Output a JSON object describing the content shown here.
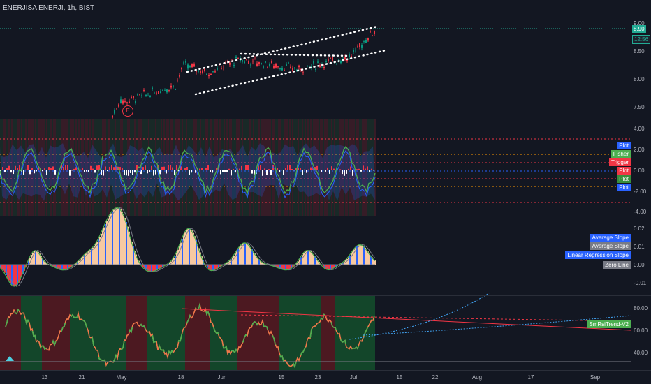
{
  "window": {
    "title": "ENERJISA ENERJI, 1h, BIST"
  },
  "colors": {
    "bg": "#131722",
    "green": "#089981",
    "red": "#f23645",
    "grid": "#2a2e39"
  },
  "price_pane": {
    "y_ticks": [
      "9.00",
      "8.50",
      "8.00",
      "7.50"
    ],
    "last_price": "8.90",
    "countdown": "12:56",
    "event_badge": "E"
  },
  "fisher_pane": {
    "y_ticks": [
      "4.00",
      "2.00",
      "0.00",
      "-2.00",
      "-4.00"
    ],
    "legend": [
      {
        "label": "Plot",
        "color": "#2962ff"
      },
      {
        "label": "Fisher",
        "color": "#4caf50"
      },
      {
        "label": "Trigger",
        "color": "#f23645"
      },
      {
        "label": "Plot",
        "color": "#f23645"
      },
      {
        "label": "Plot",
        "color": "#388e3c"
      },
      {
        "label": "Plot",
        "color": "#2962ff"
      }
    ]
  },
  "slope_pane": {
    "y_ticks": [
      "0.02",
      "0.01",
      "0.00",
      "-0.01"
    ],
    "legend": [
      {
        "label": "Average Slope",
        "color": "#2962ff"
      },
      {
        "label": "Average Slope",
        "color": "#787b86"
      },
      {
        "label": "Linear Regression Slope",
        "color": "#2962ff"
      },
      {
        "label": "Zero Line",
        "color": "#787b86"
      }
    ]
  },
  "rsi_pane": {
    "y_ticks": [
      "80.00",
      "60.00",
      "40.00"
    ],
    "legend": [
      {
        "label": "SmRsiTrend-V2",
        "color": "#4caf50"
      }
    ]
  },
  "x_axis": {
    "ticks": [
      "13",
      "21",
      "May",
      "18",
      "Jun",
      "15",
      "23",
      "Jul",
      "15",
      "22",
      "Aug",
      "17",
      "Sep"
    ]
  }
}
